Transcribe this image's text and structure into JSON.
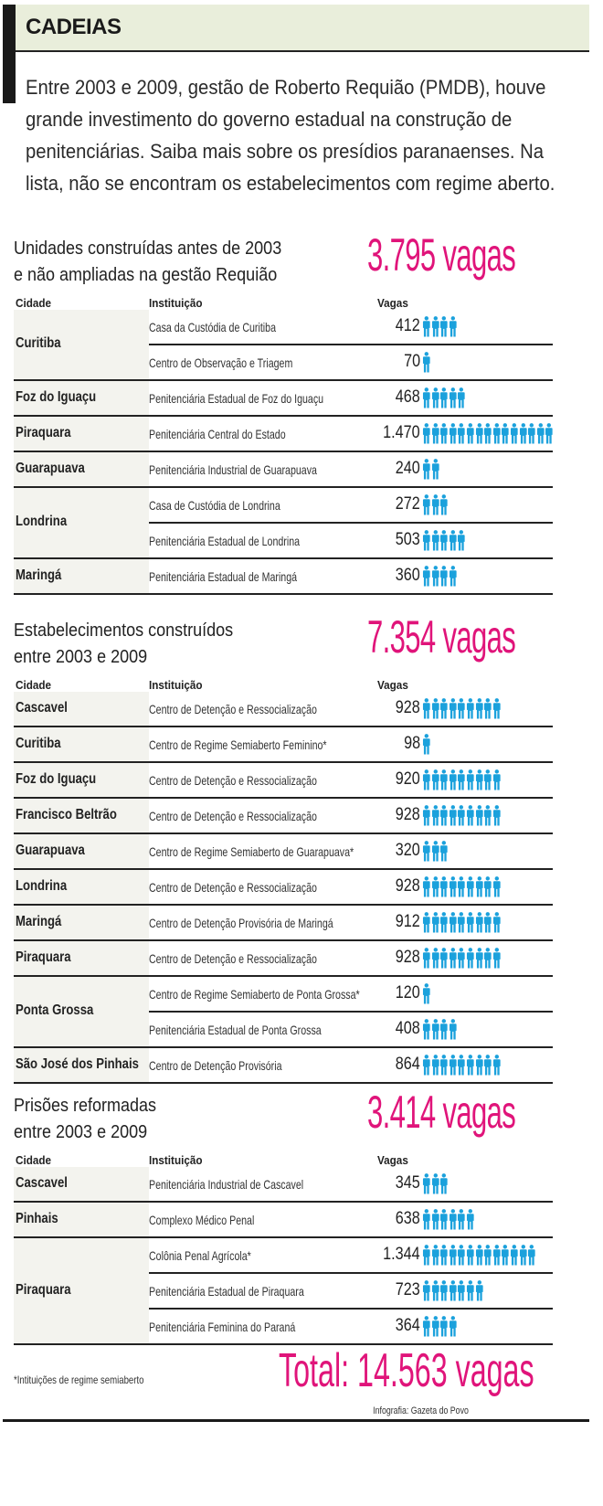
{
  "header": {
    "title": "CADEIAS",
    "intro": "Entre 2003 e 2009, gestão de Roberto Requião (PMDB), houve grande investimento do governo estadual na construção de penitenciárias. Saiba mais sobre os presídios paranaenses. Na lista, não se encontram os estabelecimentos com regime aberto."
  },
  "colors": {
    "accent": "#e0147a",
    "icon": "#1ba1dc",
    "title_band": "#e9eedb"
  },
  "chart_data": {
    "type": "table",
    "icon": "person-icon",
    "columns": [
      "Cidade",
      "Instituição",
      "Vagas"
    ],
    "sections": [
      {
        "title_line1": "Unidades construídas antes de 2003",
        "title_line2": "e não ampliadas na gestão Requião",
        "total": "3.795 vagas",
        "groups": [
          {
            "city": "Curitiba",
            "rows": [
              {
                "inst": "Casa da Custódia de Curitiba",
                "vagas": "412"
              },
              {
                "inst": "Centro de Observação e Triagem",
                "vagas": "70"
              }
            ]
          },
          {
            "city": "Foz do Iguaçu",
            "rows": [
              {
                "inst": "Penitenciária Estadual de Foz do Iguaçu",
                "vagas": "468"
              }
            ]
          },
          {
            "city": "Piraquara",
            "rows": [
              {
                "inst": "Penitenciária Central do Estado",
                "vagas": "1.470"
              }
            ]
          },
          {
            "city": "Guarapuava",
            "rows": [
              {
                "inst": "Penitenciária Industrial de Guarapuava",
                "vagas": "240"
              }
            ]
          },
          {
            "city": "Londrina",
            "rows": [
              {
                "inst": "Casa de Custódia de Londrina",
                "vagas": "272"
              },
              {
                "inst": "Penitenciária Estadual de Londrina",
                "vagas": "503"
              }
            ]
          },
          {
            "city": "Maringá",
            "rows": [
              {
                "inst": "Penitenciária Estadual de Maringá",
                "vagas": "360"
              }
            ]
          }
        ]
      },
      {
        "title_line1": "Estabelecimentos construídos",
        "title_line2": "entre 2003 e 2009",
        "total": "7.354 vagas",
        "groups": [
          {
            "city": "Cascavel",
            "rows": [
              {
                "inst": "Centro de Detenção e Ressocialização",
                "vagas": "928"
              }
            ]
          },
          {
            "city": "Curitiba",
            "rows": [
              {
                "inst": "Centro de Regime Semiaberto Feminino*",
                "vagas": "98"
              }
            ]
          },
          {
            "city": "Foz do Iguaçu",
            "rows": [
              {
                "inst": "Centro de Detenção e Ressocialização",
                "vagas": "920"
              }
            ]
          },
          {
            "city": "Francisco Beltrão",
            "rows": [
              {
                "inst": "Centro de Detenção e Ressocialização",
                "vagas": "928"
              }
            ]
          },
          {
            "city": "Guarapuava",
            "rows": [
              {
                "inst": "Centro de Regime Semiaberto de Guarapuava*",
                "vagas": "320"
              }
            ]
          },
          {
            "city": "Londrina",
            "rows": [
              {
                "inst": "Centro de Detenção e Ressocialização",
                "vagas": "928"
              }
            ]
          },
          {
            "city": "Maringá",
            "rows": [
              {
                "inst": "Centro de Detenção Provisória de Maringá",
                "vagas": "912"
              }
            ]
          },
          {
            "city": "Piraquara",
            "rows": [
              {
                "inst": "Centro de Detenção e Ressocialização",
                "vagas": "928"
              }
            ]
          },
          {
            "city": "Ponta Grossa",
            "rows": [
              {
                "inst": "Centro de Regime Semiaberto de Ponta Grossa*",
                "vagas": "120"
              },
              {
                "inst": "Penitenciária Estadual de Ponta Grossa",
                "vagas": "408"
              }
            ]
          },
          {
            "city": "São José dos Pinhais",
            "rows": [
              {
                "inst": "Centro de Detenção Provisória",
                "vagas": "864"
              }
            ]
          }
        ]
      },
      {
        "title_line1": "Prisões reformadas",
        "title_line2": "entre 2003 e 2009",
        "total": "3.414 vagas",
        "groups": [
          {
            "city": "Cascavel",
            "rows": [
              {
                "inst": "Penitenciária Industrial de Cascavel",
                "vagas": "345"
              }
            ]
          },
          {
            "city": "Pinhais",
            "rows": [
              {
                "inst": "Complexo Médico Penal",
                "vagas": "638"
              }
            ]
          },
          {
            "city": "Piraquara",
            "rows": [
              {
                "inst": "Colônia Penal Agrícola*",
                "vagas": "1.344"
              },
              {
                "inst": "Penitenciária Estadual de Piraquara",
                "vagas": "723"
              },
              {
                "inst": "Penitenciária Feminina do Paraná",
                "vagas": "364"
              }
            ]
          }
        ]
      }
    ],
    "grand_total": "Total: 14.563 vagas"
  },
  "footer": {
    "footnote": "*Intituições de regime semiaberto",
    "credit": "Infografia: Gazeta do Povo"
  }
}
